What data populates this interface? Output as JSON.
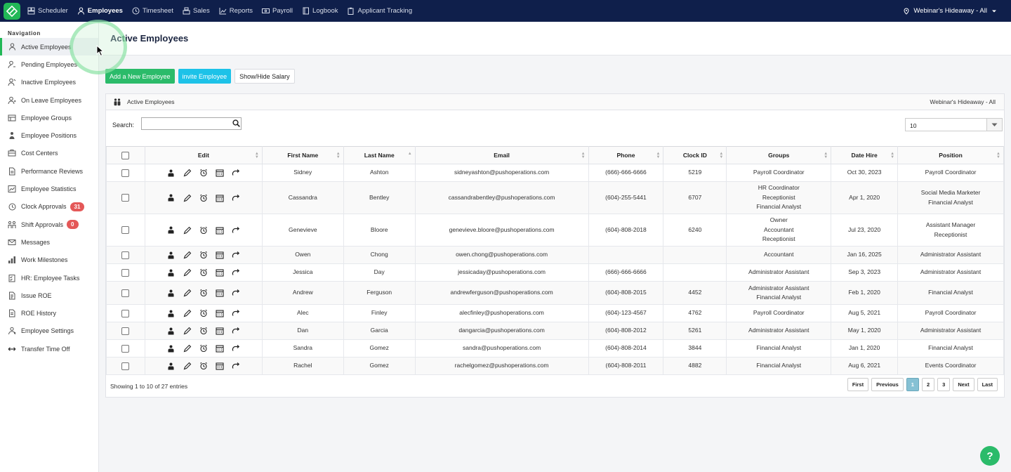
{
  "topbar": {
    "nav": [
      {
        "label": "Scheduler",
        "icon": "scheduler-icon"
      },
      {
        "label": "Employees",
        "icon": "user-icon",
        "active": true
      },
      {
        "label": "Timesheet",
        "icon": "clock-icon"
      },
      {
        "label": "Sales",
        "icon": "register-icon"
      },
      {
        "label": "Reports",
        "icon": "chart-icon"
      },
      {
        "label": "Payroll",
        "icon": "payroll-icon"
      },
      {
        "label": "Logbook",
        "icon": "book-icon"
      },
      {
        "label": "Applicant Tracking",
        "icon": "clipboard-icon"
      }
    ],
    "location": "Webinar's Hideaway - All"
  },
  "sidebar": {
    "heading": "Navigation",
    "items": [
      {
        "label": "Active Employees",
        "icon": "user-icon",
        "active": true
      },
      {
        "label": "Pending Employees",
        "icon": "user-pending-icon"
      },
      {
        "label": "Inactive Employees",
        "icon": "user-inactive-icon"
      },
      {
        "label": "On Leave Employees",
        "icon": "user-leave-icon"
      },
      {
        "label": "Employee Groups",
        "icon": "groups-icon"
      },
      {
        "label": "Employee Positions",
        "icon": "positions-icon"
      },
      {
        "label": "Cost Centers",
        "icon": "cost-center-icon"
      },
      {
        "label": "Performance Reviews",
        "icon": "document-icon"
      },
      {
        "label": "Employee Statistics",
        "icon": "statistics-icon"
      },
      {
        "label": "Clock Approvals",
        "icon": "clock-icon",
        "badge": "31"
      },
      {
        "label": "Shift Approvals",
        "icon": "shift-icon",
        "badge": "0"
      },
      {
        "label": "Messages",
        "icon": "mail-icon"
      },
      {
        "label": "Work Milestones",
        "icon": "milestone-icon"
      },
      {
        "label": "HR: Employee Tasks",
        "icon": "tasks-icon"
      },
      {
        "label": "Issue ROE",
        "icon": "roe-icon"
      },
      {
        "label": "ROE History",
        "icon": "history-icon"
      },
      {
        "label": "Employee Settings",
        "icon": "settings-icon"
      },
      {
        "label": "Transfer Time Off",
        "icon": "transfer-icon"
      }
    ]
  },
  "page": {
    "title": "Active Employees",
    "buttons": {
      "add": "Add a New Employee",
      "invite": "invite Employee",
      "salary": "Show/Hide Salary"
    },
    "panel_title": "Active Employees",
    "panel_location": "Webinar's Hideaway - All",
    "search_label": "Search:",
    "search_value": "",
    "page_size": "10",
    "footer": "Showing 1 to 10 of 27 entries",
    "pager": {
      "first": "First",
      "previous": "Previous",
      "pages": [
        "1",
        "2",
        "3"
      ],
      "current": "1",
      "next": "Next",
      "last": "Last"
    }
  },
  "table": {
    "columns": [
      "Edit",
      "First Name",
      "Last Name",
      "Email",
      "Phone",
      "Clock ID",
      "Groups",
      "Date Hire",
      "Position"
    ],
    "rows": [
      {
        "first": "Sidney",
        "last": "Ashton",
        "email": "sidneyashton@pushoperations.com",
        "phone": "(666)-666-6666",
        "clock": "5219",
        "groups": [
          "Payroll Coordinator"
        ],
        "hire": "Oct 30, 2023",
        "position": [
          "Payroll Coordinator"
        ]
      },
      {
        "first": "Cassandra",
        "last": "Bentley",
        "email": "cassandrabentley@pushoperations.com",
        "phone": "(604)-255-5441",
        "clock": "6707",
        "groups": [
          "HR Coordinator",
          "Receptionist",
          "Financial Analyst"
        ],
        "hire": "Apr 1, 2020",
        "position": [
          "Social Media Marketer",
          "Financial Analyst"
        ]
      },
      {
        "first": "Genevieve",
        "last": "Bloore",
        "email": "genevieve.bloore@pushoperations.com",
        "phone": "(604)-808-2018",
        "clock": "6240",
        "groups": [
          "Owner",
          "Accountant",
          "Receptionist"
        ],
        "hire": "Jul 23, 2020",
        "position": [
          "Assistant Manager",
          "Receptionist"
        ]
      },
      {
        "first": "Owen",
        "last": "Chong",
        "email": "owen.chong@pushoperations.com",
        "phone": "",
        "clock": "",
        "groups": [
          "Accountant"
        ],
        "hire": "Jan 16, 2025",
        "position": [
          "Administrator Assistant"
        ]
      },
      {
        "first": "Jessica",
        "last": "Day",
        "email": "jessicaday@pushoperations.com",
        "phone": "(666)-666-6666",
        "clock": "",
        "groups": [
          "Administrator Assistant"
        ],
        "hire": "Sep 3, 2023",
        "position": [
          "Administrator Assistant"
        ]
      },
      {
        "first": "Andrew",
        "last": "Ferguson",
        "email": "andrewferguson@pushoperations.com",
        "phone": "(604)-808-2015",
        "clock": "4452",
        "groups": [
          "Administrator Assistant",
          "Financial Analyst"
        ],
        "hire": "Feb 1, 2020",
        "position": [
          "Financial Analyst"
        ]
      },
      {
        "first": "Alec",
        "last": "Finley",
        "email": "alecfinley@pushoperations.com",
        "phone": "(604)-123-4567",
        "clock": "4762",
        "groups": [
          "Payroll Coordinator"
        ],
        "hire": "Aug 5, 2021",
        "position": [
          "Payroll Coordinator"
        ]
      },
      {
        "first": "Dan",
        "last": "Garcia",
        "email": "dangarcia@pushoperations.com",
        "phone": "(604)-808-2012",
        "clock": "5261",
        "groups": [
          "Administrator Assistant"
        ],
        "hire": "May 1, 2020",
        "position": [
          "Administrator Assistant"
        ]
      },
      {
        "first": "Sandra",
        "last": "Gomez",
        "email": "sandra@pushoperations.com",
        "phone": "(604)-808-2014",
        "clock": "3844",
        "groups": [
          "Financial Analyst"
        ],
        "hire": "Jan 1, 2020",
        "position": [
          "Financial Analyst"
        ]
      },
      {
        "first": "Rachel",
        "last": "Gomez",
        "email": "rachelgomez@pushoperations.com",
        "phone": "(604)-808-2011",
        "clock": "4882",
        "groups": [
          "Financial Analyst"
        ],
        "hire": "Aug 6, 2021",
        "position": [
          "Events Coordinator"
        ]
      }
    ]
  },
  "help_label": "?"
}
